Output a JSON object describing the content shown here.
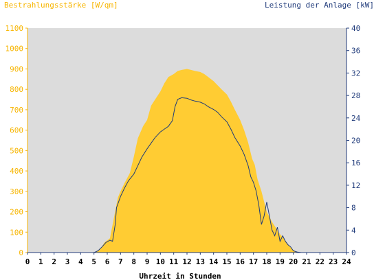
{
  "chart_data": {
    "type": "area",
    "title_left": "Bestrahlungsstärke [W/qm]",
    "title_right": "Leistung der Anlage [kW]",
    "xlabel": "Uhrzeit in Stunden",
    "x_range": [
      0,
      24
    ],
    "y_left_range": [
      0,
      1100
    ],
    "y_right_range": [
      0,
      40
    ],
    "x_ticks": [
      "0",
      "1",
      "2",
      "3",
      "4",
      "5",
      "6",
      "7",
      "8",
      "9",
      "10",
      "11",
      "12",
      "13",
      "14",
      "15",
      "16",
      "17",
      "18",
      "19",
      "20",
      "21",
      "22",
      "23",
      "24"
    ],
    "y_left_ticks": [
      "0",
      "100",
      "200",
      "300",
      "400",
      "500",
      "600",
      "700",
      "800",
      "900",
      "1000",
      "1100"
    ],
    "y_right_ticks": [
      "0",
      "4",
      "8",
      "12",
      "16",
      "20",
      "24",
      "28",
      "32",
      "36",
      "40"
    ],
    "grid": false,
    "colors": {
      "plot_background": "#dcdcdc",
      "irradiance_fill": "#ffcc33",
      "power_line": "#1f3a7a",
      "left_axis_text": "#f7b500",
      "right_axis": "#1f3a7a"
    },
    "series": [
      {
        "axis": "left",
        "style": "area",
        "x": [
          0,
          4.8,
          5.2,
          5.5,
          5.8,
          6.2,
          6.5,
          6.8,
          7.0,
          7.3,
          7.7,
          8.0,
          8.3,
          8.7,
          9.0,
          9.3,
          9.6,
          10.0,
          10.3,
          10.6,
          11.0,
          11.3,
          11.6,
          12.0,
          12.3,
          12.6,
          13.0,
          13.3,
          13.6,
          14.0,
          14.3,
          14.6,
          15.0,
          15.3,
          15.6,
          16.0,
          16.3,
          16.6,
          16.9,
          17.1,
          17.3,
          17.6,
          17.8,
          18.0,
          18.2,
          18.4,
          18.6,
          18.8,
          19.0,
          19.2,
          19.4,
          19.6,
          19.8,
          20.0,
          20.2,
          20.4,
          20.6,
          24
        ],
        "y": [
          0,
          0,
          5,
          20,
          50,
          70,
          170,
          270,
          300,
          340,
          390,
          470,
          560,
          620,
          650,
          720,
          750,
          790,
          830,
          860,
          875,
          890,
          895,
          900,
          895,
          890,
          885,
          875,
          860,
          840,
          820,
          800,
          775,
          740,
          700,
          650,
          600,
          540,
          460,
          430,
          360,
          300,
          250,
          200,
          175,
          150,
          130,
          110,
          90,
          75,
          60,
          40,
          25,
          12,
          6,
          2,
          0,
          0
        ]
      },
      {
        "axis": "right",
        "style": "line",
        "x": [
          0,
          5.0,
          5.3,
          5.6,
          5.9,
          6.2,
          6.4,
          6.6,
          6.7,
          7.0,
          7.3,
          7.6,
          8.0,
          8.3,
          8.6,
          9.0,
          9.3,
          9.6,
          10.0,
          10.3,
          10.6,
          10.9,
          11.1,
          11.3,
          11.6,
          12.0,
          12.3,
          12.6,
          13.0,
          13.3,
          13.6,
          14.0,
          14.3,
          14.6,
          15.0,
          15.3,
          15.6,
          16.0,
          16.3,
          16.6,
          16.8,
          17.0,
          17.2,
          17.4,
          17.6,
          17.8,
          18.0,
          18.2,
          18.4,
          18.6,
          18.8,
          19.0,
          19.2,
          19.4,
          19.6,
          19.8,
          20.0,
          20.3,
          20.6,
          24
        ],
        "y": [
          0,
          0,
          0.3,
          1.0,
          1.8,
          2.2,
          2.0,
          5.0,
          8.0,
          10.0,
          11.5,
          12.8,
          14.0,
          15.5,
          17.0,
          18.5,
          19.5,
          20.5,
          21.5,
          22.0,
          22.5,
          23.5,
          26.0,
          27.3,
          27.6,
          27.5,
          27.2,
          27.0,
          26.8,
          26.5,
          26.0,
          25.5,
          25.0,
          24.2,
          23.3,
          22.0,
          20.5,
          19.0,
          17.5,
          15.5,
          13.5,
          12.5,
          11.0,
          8.5,
          5.0,
          6.5,
          9.0,
          6.5,
          4.0,
          3.0,
          4.5,
          2.0,
          3.0,
          2.0,
          1.4,
          1.0,
          0.3,
          0.1,
          0,
          0
        ]
      }
    ]
  }
}
